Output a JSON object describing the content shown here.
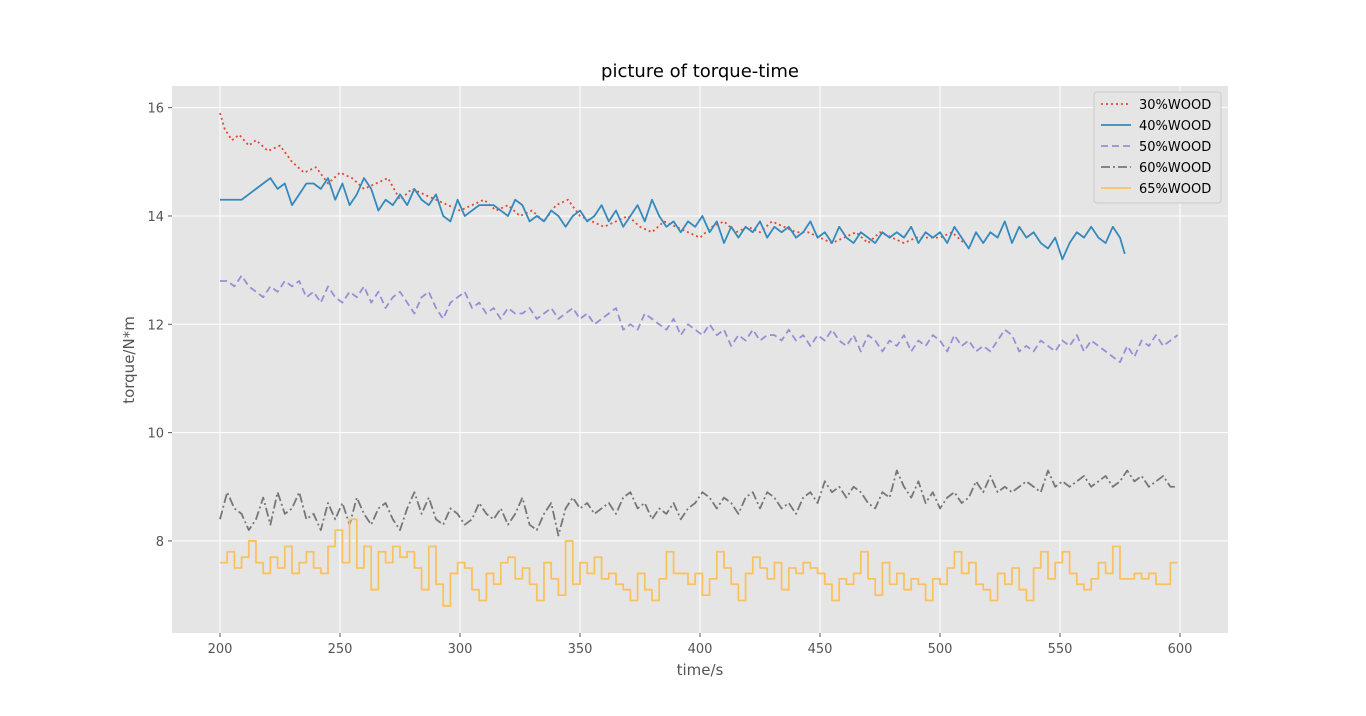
{
  "chart_data": {
    "type": "line",
    "title": "picture of torque-time",
    "xlabel": "time/s",
    "ylabel": "torque/N*m",
    "xlim": [
      180,
      620
    ],
    "ylim": [
      6.3,
      16.4
    ],
    "xticks": [
      200,
      250,
      300,
      350,
      400,
      450,
      500,
      550,
      600
    ],
    "yticks": [
      8,
      10,
      12,
      14,
      16
    ],
    "grid": true,
    "legend_position": "top-right",
    "background": "#e5e5e5",
    "series": [
      {
        "name": "30%WOOD",
        "color": "#e24a33",
        "style": "dotted",
        "step": false,
        "x": [
          200,
          202,
          205,
          208,
          212,
          215,
          220,
          225,
          230,
          235,
          240,
          245,
          250,
          255,
          260,
          265,
          270,
          275,
          280,
          285,
          290,
          295,
          300,
          305,
          310,
          315,
          320,
          325,
          330,
          335,
          340,
          345,
          350,
          355,
          360,
          365,
          370,
          375,
          380,
          385,
          390,
          395,
          400,
          405,
          410,
          415,
          420,
          425,
          430,
          435,
          440,
          445,
          450,
          455,
          460,
          465,
          470,
          475,
          480,
          485,
          490,
          495,
          500,
          505,
          510
        ],
        "values": [
          15.9,
          15.6,
          15.4,
          15.5,
          15.3,
          15.4,
          15.2,
          15.3,
          15.0,
          14.8,
          14.9,
          14.6,
          14.8,
          14.7,
          14.5,
          14.6,
          14.7,
          14.3,
          14.5,
          14.4,
          14.3,
          14.2,
          14.1,
          14.2,
          14.3,
          14.1,
          14.2,
          14.0,
          14.1,
          13.9,
          14.2,
          14.3,
          14.0,
          13.9,
          13.8,
          13.9,
          14.0,
          13.8,
          13.7,
          13.9,
          13.8,
          13.7,
          13.6,
          13.8,
          13.9,
          13.7,
          13.8,
          13.7,
          13.9,
          13.8,
          13.7,
          13.7,
          13.6,
          13.5,
          13.6,
          13.7,
          13.5,
          13.7,
          13.6,
          13.5,
          13.6,
          13.6,
          13.6,
          13.7,
          13.5
        ]
      },
      {
        "name": "40%WOOD",
        "color": "#348abd",
        "style": "solid",
        "step": false,
        "x": [
          200,
          203,
          206,
          209,
          212,
          215,
          218,
          221,
          224,
          227,
          230,
          233,
          236,
          239,
          242,
          245,
          248,
          251,
          254,
          257,
          260,
          263,
          266,
          269,
          272,
          275,
          278,
          281,
          284,
          287,
          290,
          293,
          296,
          299,
          302,
          305,
          308,
          311,
          314,
          317,
          320,
          323,
          326,
          329,
          332,
          335,
          338,
          341,
          344,
          347,
          350,
          353,
          356,
          359,
          362,
          365,
          368,
          371,
          374,
          377,
          380,
          383,
          386,
          389,
          392,
          395,
          398,
          401,
          404,
          407,
          410,
          413,
          416,
          419,
          422,
          425,
          428,
          431,
          434,
          437,
          440,
          443,
          446,
          449,
          452,
          455,
          458,
          461,
          464,
          467,
          470,
          473,
          476,
          479,
          482,
          485,
          488,
          491,
          494,
          497,
          500,
          503,
          506,
          509,
          512,
          515,
          518,
          521,
          524,
          527,
          530,
          533,
          536,
          539,
          542,
          545,
          548,
          551,
          554,
          557,
          560,
          563,
          566,
          569,
          572,
          575,
          577
        ],
        "values": [
          14.3,
          14.3,
          14.3,
          14.3,
          14.4,
          14.5,
          14.6,
          14.7,
          14.5,
          14.6,
          14.2,
          14.4,
          14.6,
          14.6,
          14.5,
          14.7,
          14.3,
          14.6,
          14.2,
          14.4,
          14.7,
          14.5,
          14.1,
          14.3,
          14.2,
          14.4,
          14.2,
          14.5,
          14.3,
          14.2,
          14.4,
          14.0,
          13.9,
          14.3,
          14.0,
          14.1,
          14.2,
          14.2,
          14.2,
          14.1,
          14.0,
          14.3,
          14.2,
          13.9,
          14.0,
          13.9,
          14.1,
          14.0,
          13.8,
          14.0,
          14.1,
          13.9,
          14.0,
          14.2,
          13.9,
          14.1,
          13.8,
          14.0,
          14.2,
          13.9,
          14.3,
          14.0,
          13.8,
          13.9,
          13.7,
          13.9,
          13.8,
          14.0,
          13.7,
          13.9,
          13.5,
          13.8,
          13.6,
          13.8,
          13.7,
          13.9,
          13.6,
          13.8,
          13.7,
          13.8,
          13.6,
          13.7,
          13.9,
          13.6,
          13.7,
          13.5,
          13.8,
          13.6,
          13.5,
          13.7,
          13.6,
          13.5,
          13.7,
          13.6,
          13.7,
          13.6,
          13.8,
          13.5,
          13.7,
          13.6,
          13.7,
          13.5,
          13.8,
          13.6,
          13.4,
          13.7,
          13.5,
          13.7,
          13.6,
          13.9,
          13.5,
          13.8,
          13.6,
          13.7,
          13.5,
          13.4,
          13.6,
          13.2,
          13.5,
          13.7,
          13.6,
          13.8,
          13.6,
          13.5,
          13.8,
          13.6,
          13.3
        ]
      },
      {
        "name": "50%WOOD",
        "color": "#988ed5",
        "style": "dashed",
        "step": false,
        "x": [
          200,
          203,
          206,
          209,
          212,
          215,
          218,
          221,
          224,
          227,
          230,
          233,
          236,
          239,
          242,
          245,
          248,
          251,
          254,
          257,
          260,
          263,
          266,
          269,
          272,
          275,
          278,
          281,
          284,
          287,
          290,
          293,
          296,
          299,
          302,
          305,
          308,
          311,
          314,
          317,
          320,
          323,
          326,
          329,
          332,
          335,
          338,
          341,
          344,
          347,
          350,
          353,
          356,
          359,
          362,
          365,
          368,
          371,
          374,
          377,
          380,
          383,
          386,
          389,
          392,
          395,
          398,
          401,
          404,
          407,
          410,
          413,
          416,
          419,
          422,
          425,
          428,
          431,
          434,
          437,
          440,
          443,
          446,
          449,
          452,
          455,
          458,
          461,
          464,
          467,
          470,
          473,
          476,
          479,
          482,
          485,
          488,
          491,
          494,
          497,
          500,
          503,
          506,
          509,
          512,
          515,
          518,
          521,
          524,
          527,
          530,
          533,
          536,
          539,
          542,
          545,
          548,
          551,
          554,
          557,
          560,
          563,
          566,
          569,
          572,
          575,
          578,
          581,
          584,
          587,
          590,
          593,
          596,
          599
        ],
        "values": [
          12.8,
          12.8,
          12.7,
          12.9,
          12.7,
          12.6,
          12.5,
          12.7,
          12.6,
          12.8,
          12.7,
          12.8,
          12.5,
          12.6,
          12.4,
          12.7,
          12.5,
          12.4,
          12.6,
          12.5,
          12.7,
          12.4,
          12.6,
          12.3,
          12.5,
          12.6,
          12.4,
          12.2,
          12.5,
          12.6,
          12.3,
          12.1,
          12.4,
          12.5,
          12.6,
          12.3,
          12.4,
          12.2,
          12.3,
          12.1,
          12.3,
          12.2,
          12.2,
          12.3,
          12.1,
          12.2,
          12.3,
          12.1,
          12.2,
          12.3,
          12.1,
          12.2,
          12.0,
          12.1,
          12.2,
          12.3,
          11.9,
          12.0,
          11.9,
          12.2,
          12.1,
          12.0,
          11.9,
          12.1,
          11.8,
          12.0,
          11.9,
          11.8,
          12.0,
          11.8,
          11.9,
          11.6,
          11.8,
          11.7,
          11.9,
          11.7,
          11.8,
          11.8,
          11.7,
          11.9,
          11.7,
          11.8,
          11.6,
          11.8,
          11.7,
          11.9,
          11.7,
          11.6,
          11.8,
          11.5,
          11.8,
          11.7,
          11.5,
          11.7,
          11.6,
          11.8,
          11.5,
          11.7,
          11.6,
          11.8,
          11.7,
          11.5,
          11.8,
          11.6,
          11.7,
          11.5,
          11.6,
          11.5,
          11.7,
          11.9,
          11.8,
          11.5,
          11.6,
          11.5,
          11.7,
          11.6,
          11.5,
          11.7,
          11.6,
          11.8,
          11.5,
          11.7,
          11.6,
          11.5,
          11.4,
          11.3,
          11.6,
          11.4,
          11.7,
          11.6,
          11.8,
          11.6,
          11.7,
          11.8
        ]
      },
      {
        "name": "60%WOOD",
        "color": "#777777",
        "style": "dashdot",
        "step": false,
        "x": [
          200,
          203,
          206,
          209,
          212,
          215,
          218,
          221,
          224,
          227,
          230,
          233,
          236,
          239,
          242,
          245,
          248,
          251,
          254,
          257,
          260,
          263,
          266,
          269,
          272,
          275,
          278,
          281,
          284,
          287,
          290,
          293,
          296,
          299,
          302,
          305,
          308,
          311,
          314,
          317,
          320,
          323,
          326,
          329,
          332,
          335,
          338,
          341,
          344,
          347,
          350,
          353,
          356,
          359,
          362,
          365,
          368,
          371,
          374,
          377,
          380,
          383,
          386,
          389,
          392,
          395,
          398,
          401,
          404,
          407,
          410,
          413,
          416,
          419,
          422,
          425,
          428,
          431,
          434,
          437,
          440,
          443,
          446,
          449,
          452,
          455,
          458,
          461,
          464,
          467,
          470,
          473,
          476,
          479,
          482,
          485,
          488,
          491,
          494,
          497,
          500,
          503,
          506,
          509,
          512,
          515,
          518,
          521,
          524,
          527,
          530,
          533,
          536,
          539,
          542,
          545,
          548,
          551,
          554,
          557,
          560,
          563,
          566,
          569,
          572,
          575,
          578,
          581,
          584,
          587,
          590,
          593,
          596,
          599
        ],
        "values": [
          8.4,
          8.9,
          8.6,
          8.5,
          8.2,
          8.4,
          8.8,
          8.3,
          8.9,
          8.5,
          8.6,
          8.9,
          8.4,
          8.5,
          8.2,
          8.7,
          8.4,
          8.7,
          8.3,
          8.8,
          8.5,
          8.3,
          8.6,
          8.7,
          8.4,
          8.2,
          8.6,
          8.9,
          8.5,
          8.8,
          8.4,
          8.3,
          8.6,
          8.5,
          8.3,
          8.4,
          8.7,
          8.5,
          8.4,
          8.6,
          8.3,
          8.5,
          8.8,
          8.3,
          8.2,
          8.5,
          8.7,
          8.1,
          8.6,
          8.8,
          8.6,
          8.7,
          8.5,
          8.6,
          8.7,
          8.5,
          8.8,
          8.9,
          8.6,
          8.7,
          8.4,
          8.6,
          8.5,
          8.7,
          8.4,
          8.6,
          8.7,
          8.9,
          8.8,
          8.6,
          8.8,
          8.7,
          8.5,
          8.8,
          8.9,
          8.6,
          8.9,
          8.8,
          8.6,
          8.7,
          8.5,
          8.8,
          8.9,
          8.7,
          9.1,
          8.9,
          9.0,
          8.8,
          9.0,
          8.9,
          8.7,
          8.6,
          8.9,
          8.8,
          9.3,
          9.0,
          8.8,
          9.1,
          8.7,
          8.9,
          8.6,
          8.8,
          8.9,
          8.7,
          8.8,
          9.1,
          8.9,
          9.2,
          8.9,
          9.0,
          8.9,
          9.0,
          9.1,
          9.0,
          8.9,
          9.3,
          9.0,
          9.1,
          9.0,
          9.1,
          9.2,
          9.0,
          9.1,
          9.2,
          9.0,
          9.1,
          9.3,
          9.1,
          9.2,
          9.0,
          9.1,
          9.2,
          9.0,
          9.0
        ]
      },
      {
        "name": "65%WOOD",
        "color": "#fbc15e",
        "style": "solid",
        "step": true,
        "x": [
          200,
          203,
          206,
          209,
          212,
          215,
          218,
          221,
          224,
          227,
          230,
          233,
          236,
          239,
          242,
          245,
          248,
          251,
          254,
          257,
          260,
          263,
          266,
          269,
          272,
          275,
          278,
          281,
          284,
          287,
          290,
          293,
          296,
          299,
          302,
          305,
          308,
          311,
          314,
          317,
          320,
          323,
          326,
          329,
          332,
          335,
          338,
          341,
          344,
          347,
          350,
          353,
          356,
          359,
          362,
          365,
          368,
          371,
          374,
          377,
          380,
          383,
          386,
          389,
          392,
          395,
          398,
          401,
          404,
          407,
          410,
          413,
          416,
          419,
          422,
          425,
          428,
          431,
          434,
          437,
          440,
          443,
          446,
          449,
          452,
          455,
          458,
          461,
          464,
          467,
          470,
          473,
          476,
          479,
          482,
          485,
          488,
          491,
          494,
          497,
          500,
          503,
          506,
          509,
          512,
          515,
          518,
          521,
          524,
          527,
          530,
          533,
          536,
          539,
          542,
          545,
          548,
          551,
          554,
          557,
          560,
          563,
          566,
          569,
          572,
          575,
          578,
          581,
          584,
          587,
          590,
          593,
          596,
          599
        ],
        "values": [
          7.6,
          7.8,
          7.5,
          7.7,
          8.0,
          7.6,
          7.4,
          7.7,
          7.5,
          7.9,
          7.4,
          7.6,
          7.8,
          7.5,
          7.4,
          7.9,
          8.2,
          7.6,
          8.4,
          7.5,
          7.9,
          7.1,
          7.8,
          7.6,
          7.9,
          7.7,
          7.8,
          7.5,
          7.1,
          7.9,
          7.2,
          6.8,
          7.4,
          7.6,
          7.5,
          7.1,
          6.9,
          7.4,
          7.2,
          7.6,
          7.7,
          7.3,
          7.5,
          7.2,
          6.9,
          7.6,
          7.3,
          7.0,
          8.0,
          7.2,
          7.6,
          7.4,
          7.7,
          7.3,
          7.4,
          7.2,
          7.1,
          6.9,
          7.4,
          7.1,
          6.9,
          7.3,
          7.8,
          7.4,
          7.4,
          7.2,
          7.4,
          7.0,
          7.3,
          7.8,
          7.5,
          7.2,
          6.9,
          7.4,
          7.7,
          7.5,
          7.3,
          7.6,
          7.1,
          7.5,
          7.4,
          7.6,
          7.5,
          7.4,
          7.2,
          6.9,
          7.3,
          7.2,
          7.4,
          7.8,
          7.3,
          7.0,
          7.6,
          7.2,
          7.4,
          7.1,
          7.3,
          7.2,
          6.9,
          7.3,
          7.2,
          7.5,
          7.8,
          7.4,
          7.6,
          7.2,
          7.1,
          6.9,
          7.4,
          7.2,
          7.5,
          7.1,
          6.9,
          7.5,
          7.8,
          7.3,
          7.6,
          7.8,
          7.4,
          7.2,
          7.1,
          7.3,
          7.6,
          7.4,
          7.9,
          7.3,
          7.3,
          7.4,
          7.3,
          7.4,
          7.2,
          7.2,
          7.6,
          7.6
        ]
      }
    ]
  }
}
